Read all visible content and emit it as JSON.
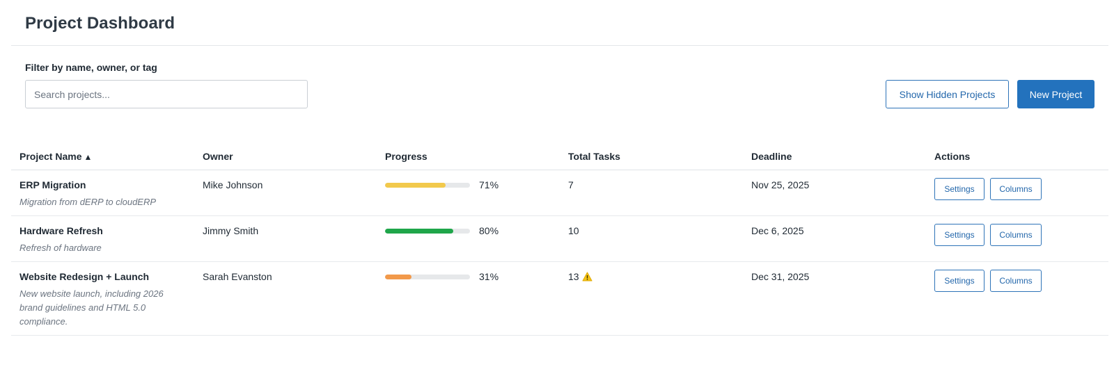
{
  "page": {
    "title": "Project Dashboard"
  },
  "filter": {
    "label": "Filter by name, owner, or tag",
    "placeholder": "Search projects...",
    "value": ""
  },
  "toolbar": {
    "show_hidden_label": "Show Hidden Projects",
    "new_project_label": "New Project"
  },
  "colors": {
    "primary": "#2372bd",
    "progress_yellow": "#f2c94c",
    "progress_green": "#1fa64a",
    "progress_orange": "#f2994a",
    "progress_track": "#e6e8ea"
  },
  "table": {
    "columns": {
      "name": "Project Name",
      "owner": "Owner",
      "progress": "Progress",
      "tasks": "Total Tasks",
      "deadline": "Deadline",
      "actions": "Actions"
    },
    "sort_icon": "▲",
    "rows": [
      {
        "name": "ERP Migration",
        "description": "Migration from dERP to cloudERP",
        "owner": "Mike Johnson",
        "progress": 0.71,
        "progress_label": "71%",
        "progress_color": "#f2c94c",
        "tasks": "7",
        "warning": false,
        "deadline": "Nov 25, 2025",
        "settings_label": "Settings",
        "columns_label": "Columns"
      },
      {
        "name": "Hardware Refresh",
        "description": "Refresh of hardware",
        "owner": "Jimmy Smith",
        "progress": 0.8,
        "progress_label": "80%",
        "progress_color": "#1fa64a",
        "tasks": "10",
        "warning": false,
        "deadline": "Dec 6, 2025",
        "settings_label": "Settings",
        "columns_label": "Columns"
      },
      {
        "name": "Website Redesign + Launch",
        "description": "New website launch, including 2026 brand guidelines and HTML 5.0 compliance.",
        "owner": "Sarah Evanston",
        "progress": 0.31,
        "progress_label": "31%",
        "progress_color": "#f2994a",
        "tasks": "13",
        "warning": true,
        "warning_icon": "warning-icon",
        "deadline": "Dec 31, 2025",
        "settings_label": "Settings",
        "columns_label": "Columns"
      }
    ]
  }
}
